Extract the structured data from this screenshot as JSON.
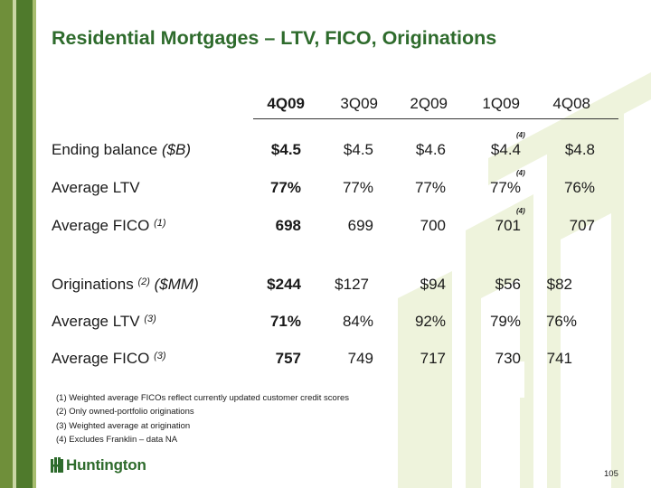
{
  "title": "Residential Mortgages – LTV, FICO, Originations",
  "columns": [
    "4Q09",
    "3Q09",
    "2Q09",
    "1Q09",
    "4Q08"
  ],
  "rows": [
    {
      "label": "Ending balance ",
      "label_em": "($B)",
      "label_sup": "",
      "values": [
        "$4.5",
        "$4.5",
        "$4.6",
        "$4.4",
        "$4.8"
      ],
      "note": "(4)"
    },
    {
      "label": "Average LTV",
      "label_em": "",
      "label_sup": "",
      "values": [
        "77%",
        "77%",
        "77%",
        "77%",
        "76%"
      ],
      "note": "(4)"
    },
    {
      "label": "Average FICO ",
      "label_em": "",
      "label_sup": "(1)",
      "values": [
        "698",
        "699",
        "700",
        "701",
        "707"
      ],
      "note": "(4)"
    },
    {
      "label": "Originations ",
      "label_em": "($MM)",
      "label_sup": "(2)",
      "values": [
        "$244",
        "$127",
        "$94",
        "$56",
        "$82"
      ],
      "note": ""
    },
    {
      "label": "Average LTV ",
      "label_em": "",
      "label_sup": "(3)",
      "values": [
        "71%",
        "84%",
        "92%",
        "79%",
        "76%"
      ],
      "note": ""
    },
    {
      "label": "Average FICO ",
      "label_em": "",
      "label_sup": "(3)",
      "values": [
        "757",
        "749",
        "717",
        "730",
        "741"
      ],
      "note": ""
    }
  ],
  "footnotes": [
    "(1)  Weighted average FICOs reflect currently updated customer credit scores",
    "(2)  Only owned-portfolio originations",
    "(3)  Weighted average at origination",
    "(4)  Excludes Franklin – data NA"
  ],
  "logo_text": "Huntington",
  "page_number": "105",
  "colors": {
    "title": "#2e6b2c",
    "sidebar_dark": "#4f7a2c",
    "sidebar_mid": "#6f8f3a",
    "watermark": "#eef3dc"
  }
}
